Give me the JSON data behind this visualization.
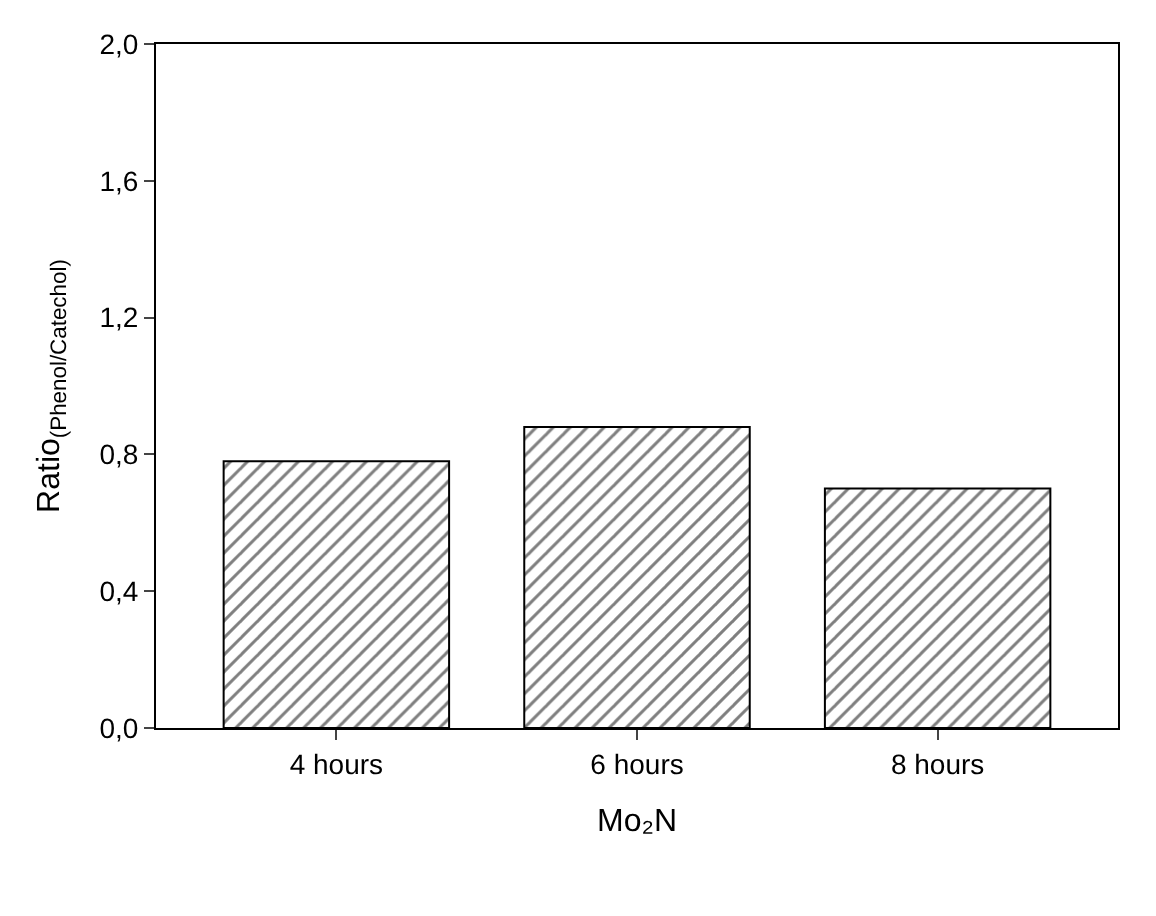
{
  "chart_data": {
    "type": "bar",
    "categories": [
      "4 hours",
      "6 hours",
      "8 hours"
    ],
    "values": [
      0.78,
      0.88,
      0.7
    ],
    "color": "#000000",
    "xlabel": "Mo₂N",
    "ylabel": "Ratio$_{(Phenol/Catechol)}$",
    "ylim": [
      0,
      2.0
    ],
    "yticks": [
      {
        "value": 0,
        "label": "0,0"
      },
      {
        "value": 0.4,
        "label": "0,4"
      },
      {
        "value": 0.8,
        "label": "0,8"
      },
      {
        "value": 1.2,
        "label": "1,2"
      },
      {
        "value": 1.6,
        "label": "1,6"
      },
      {
        "value": 2.0,
        "label": "2,0"
      }
    ]
  }
}
